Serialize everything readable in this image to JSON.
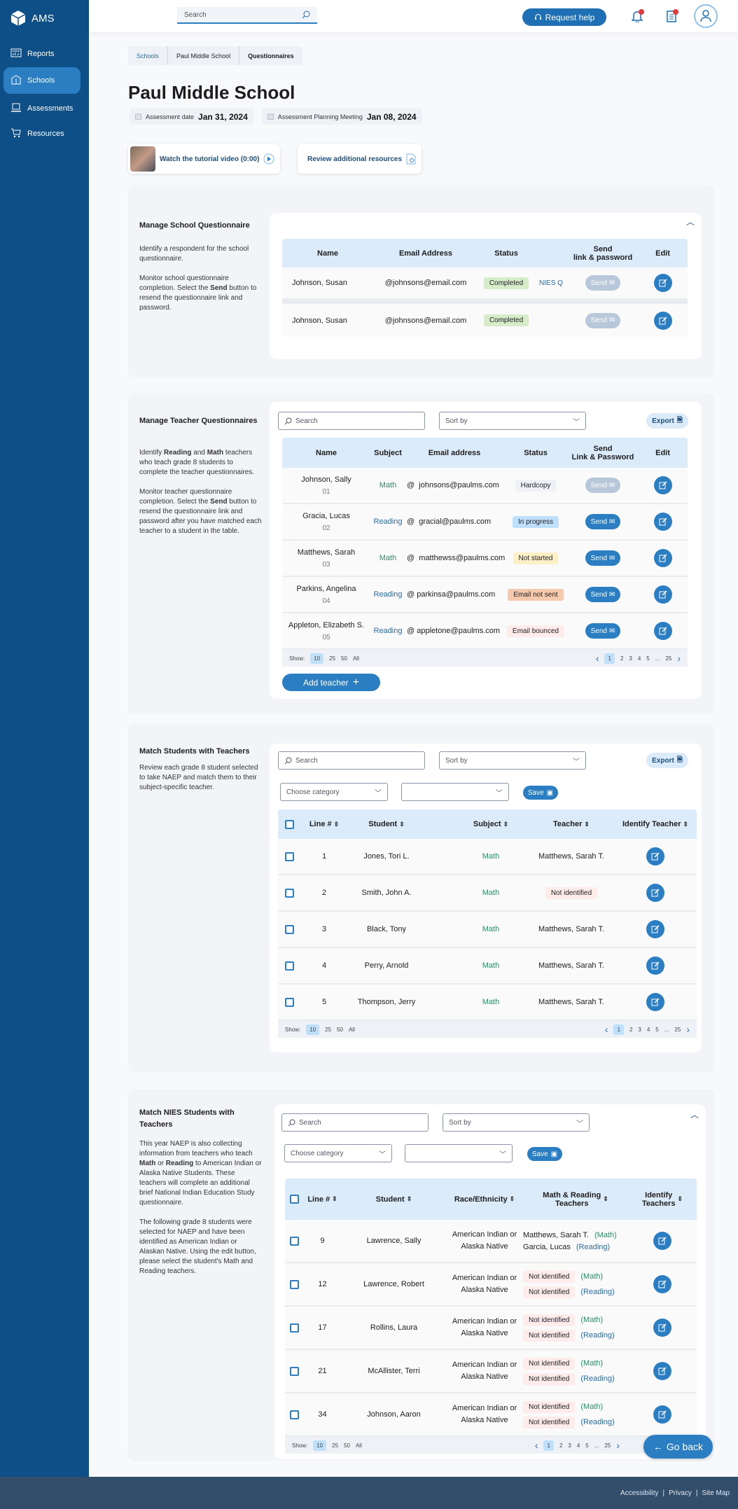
{
  "app": {
    "name": "AMS"
  },
  "sidebar": {
    "items": [
      {
        "label": "Reports",
        "icon": "report-icon"
      },
      {
        "label": "Schools",
        "icon": "school-icon",
        "active": true
      },
      {
        "label": "Assessments",
        "icon": "laptop-icon"
      },
      {
        "label": "Resources",
        "icon": "cart-icon"
      }
    ]
  },
  "header": {
    "search_placeholder": "Search",
    "request_help": "Request help",
    "notifications": true,
    "tasks": true
  },
  "breadcrumb": [
    "Schools",
    "Paul Middle School",
    "Questionnaires"
  ],
  "page": {
    "title": "Paul Middle School",
    "assessment_date_label": "Assessment date",
    "assessment_date": "Jan 31, 2024",
    "meeting_label": "Assessment Planning Meeting",
    "meeting_date": "Jan 08, 2024"
  },
  "resources": {
    "video": "Watch the tutorial video (0:00)",
    "review": "Review additional resources"
  },
  "colors": {
    "sidebar": "#0d4f86",
    "accent": "#2b7ec1",
    "footer": "#334e6b",
    "math": "#2b8c6c",
    "reading": "#2b6aa5"
  },
  "school_q": {
    "title": "Manage School Questionnaire",
    "desc": [
      [
        {
          "t": "Identify a respondent for the school questionnaire."
        }
      ],
      [
        {
          "t": "Monitor school questionnaire completion. Select the "
        },
        {
          "t": "Send",
          "b": true
        },
        {
          "t": " button to resend the questionnaire link and password."
        }
      ]
    ],
    "columns": [
      "Name",
      "Email Address",
      "Status",
      "",
      "Send\nlink & password",
      "Edit"
    ],
    "rows": [
      {
        "name": "Johnson, Susan",
        "email": "@johnsons@email.com",
        "status": "Completed",
        "tag": "NIES Q",
        "send": "Send",
        "send_enabled": false
      },
      {
        "name": "Johnson, Susan",
        "email": "@johnsons@email.com",
        "status": "Completed",
        "tag": "",
        "send": "Send",
        "send_enabled": false
      }
    ]
  },
  "teacher_q": {
    "title": "Manage Teacher Questionnaires",
    "desc": [
      [
        {
          "t": "Identify "
        },
        {
          "t": "Reading",
          "b": true
        },
        {
          "t": " and "
        },
        {
          "t": "Math",
          "b": true
        },
        {
          "t": " teachers who teach grade 8 students to complete the teacher questionnaires."
        }
      ],
      [
        {
          "t": "Monitor teacher questionnaire completion. Select the "
        },
        {
          "t": "Send",
          "b": true
        },
        {
          "t": " button to resend the questionnaire link and password after you have matched each teacher to a student in the table."
        }
      ]
    ],
    "search_placeholder": "Search",
    "sort_placeholder": "Sort by",
    "export": "Export",
    "columns": [
      "Name",
      "Subject",
      "Email address",
      "Status",
      "Send\nLink & Password",
      "Edit"
    ],
    "rows": [
      {
        "name": "Johnson, Sally",
        "id": "01",
        "subject": "Math",
        "email": "@  johnsons@paulms.com",
        "status": "Hardcopy",
        "send": "Send",
        "send_enabled": false
      },
      {
        "name": "Gracia, Lucas",
        "id": "02",
        "subject": "Reading",
        "email": "@  gracial@paulms.com",
        "status": "In progress",
        "send": "Send",
        "send_enabled": true
      },
      {
        "name": "Matthews, Sarah",
        "id": "03",
        "subject": "Math",
        "email": "@  matthewss@paulms.com",
        "status": "Not started",
        "send": "Send",
        "send_enabled": true
      },
      {
        "name": "Parkins, Angelina",
        "id": "04",
        "subject": "Reading",
        "email": "@ parkinsa@paulms.com",
        "status": "Email not sent",
        "send": "Send",
        "send_enabled": true
      },
      {
        "name": "Appleton, Elizabeth S.",
        "id": "05",
        "subject": "Reading",
        "email": "@ appletone@paulms.com",
        "status": "Email bounced",
        "send": "Send",
        "send_enabled": true
      }
    ],
    "add_teacher": "Add teacher"
  },
  "pagination": {
    "show_label": "Show:",
    "options": [
      "10",
      "25",
      "50",
      "All"
    ],
    "selected": "10",
    "pages": [
      "1",
      "2",
      "3",
      "4",
      "5",
      "...",
      "25"
    ],
    "current": "1"
  },
  "match": {
    "title": "Match Students with Teachers",
    "desc": [
      [
        {
          "t": "Review each grade 8 student selected to take NAEP and match them to their subject-specific teacher."
        }
      ]
    ],
    "search_placeholder": "Search",
    "sort_placeholder": "Sort by",
    "export": "Export",
    "category_placeholder": "Choose category",
    "save": "Save",
    "columns": [
      "",
      "Line #",
      "Student",
      "",
      "Subject",
      "Teacher",
      "Identify Teacher"
    ],
    "rows": [
      {
        "line": "1",
        "student": "Jones, Tori L.",
        "subject": "Math",
        "teacher": "Matthews, Sarah T."
      },
      {
        "line": "2",
        "student": "Smith, John A.",
        "subject": "Math",
        "teacher": "Not identified"
      },
      {
        "line": "3",
        "student": "Black, Tony",
        "subject": "Math",
        "teacher": "Matthews, Sarah T."
      },
      {
        "line": "4",
        "student": "Perry, Arnold",
        "subject": "Math",
        "teacher": "Matthews, Sarah T."
      },
      {
        "line": "5",
        "student": "Thompson, Jerry",
        "subject": "Math",
        "teacher": "Matthews, Sarah T."
      }
    ]
  },
  "nies": {
    "title": "Match NIES Students with Teachers",
    "desc": [
      [
        {
          "t": "This year NAEP is also collecting information from teachers who teach "
        },
        {
          "t": "Math",
          "b": true
        },
        {
          "t": " or "
        },
        {
          "t": "Reading",
          "b": true
        },
        {
          "t": " to American Indian or Alaska Native Students. These teachers will complete an additional brief National Indian Education Study questionnaire."
        }
      ],
      [
        {
          "t": "The following grade 8 students were selected for NAEP and have been identified as American Indian or Alaskan Native. Using the edit button, please select the student's Math and Reading teachers."
        }
      ]
    ],
    "search_placeholder": "Search",
    "sort_placeholder": "Sort by",
    "category_placeholder": "Choose category",
    "save": "Save",
    "columns": [
      "",
      "Line #",
      "Student",
      "Race/Ethnicity",
      "Math & Reading\nTeachers",
      "Identify\nTeachers"
    ],
    "rows": [
      {
        "line": "9",
        "student": "Lawrence, Sally",
        "race": "American Indian or\nAlaska Native",
        "math": "Matthews, Sarah T.",
        "reading": "Garcia, Lucas"
      },
      {
        "line": "12",
        "student": "Lawrence, Robert",
        "race": "American Indian or\nAlaska Native",
        "math": "Not identified",
        "reading": "Not identified"
      },
      {
        "line": "17",
        "student": "Rollins, Laura",
        "race": "American Indian or\nAlaska Native",
        "math": "Not identified",
        "reading": "Not identified"
      },
      {
        "line": "21",
        "student": "McAllister, Terri",
        "race": "American Indian or\nAlaska Native",
        "math": "Not identified",
        "reading": "Not identified"
      },
      {
        "line": "34",
        "student": "Johnson, Aaron",
        "race": "American Indian or\nAlaska Native",
        "math": "Not identified",
        "reading": "Not identified"
      }
    ],
    "math_tag": "(Math)",
    "reading_tag": "(Reading)"
  },
  "go_back": "Go back",
  "footer": {
    "links": [
      "Accessibility",
      "Privacy",
      "Site Map"
    ]
  }
}
